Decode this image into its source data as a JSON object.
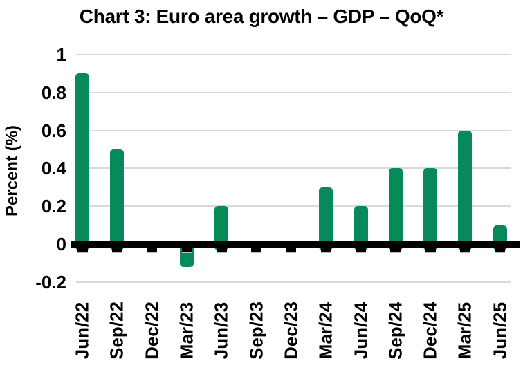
{
  "title": "Chart 3: Euro area growth – GDP – QoQ*",
  "chart_data": {
    "type": "bar",
    "title": "Chart 3: Euro area growth – GDP – QoQ*",
    "xlabel": "",
    "ylabel": "Percent (%)",
    "categories": [
      "Jun/22",
      "Sep/22",
      "Dec/22",
      "Mar/23",
      "Jun/23",
      "Sep/23",
      "Dec/23",
      "Mar/24",
      "Jun/24",
      "Sep/24",
      "Dec/24",
      "Mar/25",
      "Jun/25"
    ],
    "values": [
      0.9,
      0.5,
      0.0,
      -0.1,
      0.2,
      0.0,
      0.0,
      0.3,
      0.2,
      0.4,
      0.4,
      0.6,
      0.1
    ],
    "ylim": [
      -0.2,
      1.0
    ],
    "yticks": [
      1,
      0.8,
      0.6,
      0.4,
      0.2,
      0,
      -0.2
    ],
    "ytick_labels": [
      "1",
      "0.8",
      "0.6",
      "0.4",
      "0.2",
      "0",
      "-0.2"
    ],
    "bar_color": "#068a5a",
    "axis_color": "#000000",
    "gridline_color": "#d9d9d9",
    "grid": true,
    "legend": false
  }
}
